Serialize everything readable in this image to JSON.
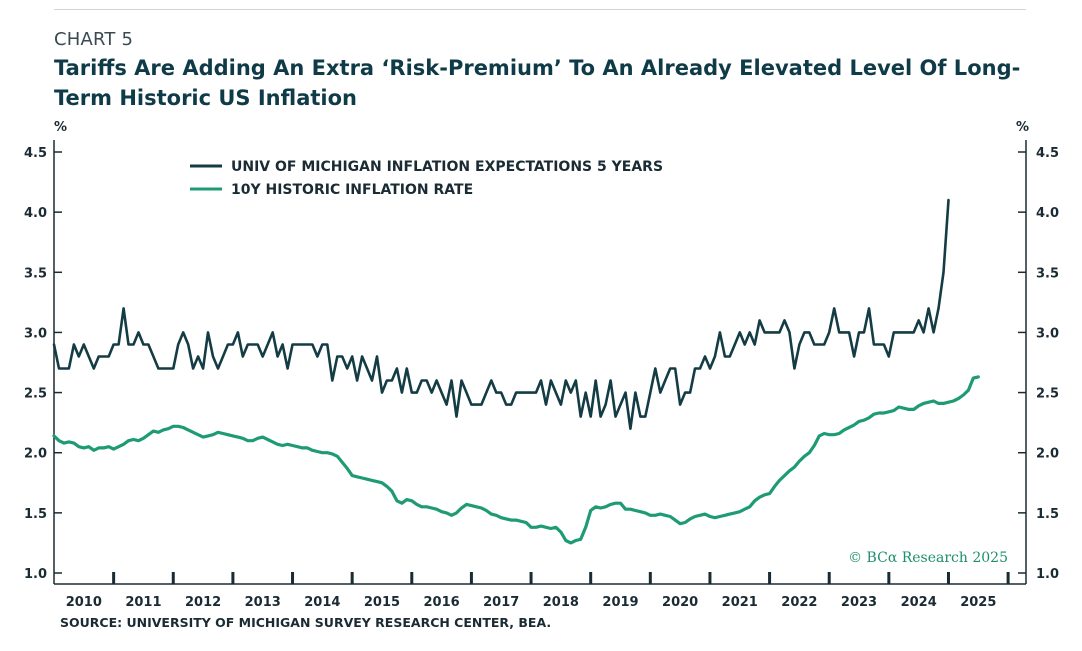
{
  "header": {
    "chart_number": "CHART 5",
    "title": "Tariffs Are Adding An Extra ‘Risk-Premium’ To An Already Elevated Level Of Long-Term Historic US Inflation"
  },
  "source": "SOURCE: UNIVERSITY OF MICHIGAN SURVEY RESEARCH CENTER, BEA.",
  "watermark": "© BCα Research 2025",
  "chart_data": {
    "type": "line",
    "title": "Tariffs Are Adding An Extra ‘Risk-Premium’ To An Already Elevated Level Of Long-Term Historic US Inflation",
    "ylabel_left": "%",
    "ylabel_right": "%",
    "ylim": [
      1.0,
      4.5
    ],
    "y_ticks": [
      "1.0",
      "1.5",
      "2.0",
      "2.5",
      "3.0",
      "3.5",
      "4.0",
      "4.5"
    ],
    "x_ticks": [
      "2010",
      "2011",
      "2012",
      "2013",
      "2014",
      "2015",
      "2016",
      "2017",
      "2018",
      "2019",
      "2020",
      "2021",
      "2022",
      "2023",
      "2024",
      "2025"
    ],
    "xlim": [
      2009.5,
      2025.8
    ],
    "grid": false,
    "legend_position": "top-left",
    "colors": {
      "expectations": "#143c44",
      "historic": "#1e9b74"
    },
    "series": [
      {
        "name": "UNIV OF MICHIGAN INFLATION EXPECTATIONS 5 YEARS",
        "start": 2009.5,
        "step": 0.0833333,
        "values": [
          2.9,
          2.7,
          2.7,
          2.7,
          2.9,
          2.8,
          2.9,
          2.8,
          2.7,
          2.8,
          2.8,
          2.8,
          2.9,
          2.9,
          3.2,
          2.9,
          2.9,
          3.0,
          2.9,
          2.9,
          2.8,
          2.7,
          2.7,
          2.7,
          2.7,
          2.9,
          3.0,
          2.9,
          2.7,
          2.8,
          2.7,
          3.0,
          2.8,
          2.7,
          2.8,
          2.9,
          2.9,
          3.0,
          2.8,
          2.9,
          2.9,
          2.9,
          2.8,
          2.9,
          3.0,
          2.8,
          2.9,
          2.7,
          2.9,
          2.9,
          2.9,
          2.9,
          2.9,
          2.8,
          2.9,
          2.9,
          2.6,
          2.8,
          2.8,
          2.7,
          2.8,
          2.6,
          2.8,
          2.7,
          2.6,
          2.8,
          2.5,
          2.6,
          2.6,
          2.7,
          2.5,
          2.7,
          2.5,
          2.5,
          2.6,
          2.6,
          2.5,
          2.6,
          2.5,
          2.4,
          2.6,
          2.3,
          2.6,
          2.5,
          2.4,
          2.4,
          2.4,
          2.5,
          2.6,
          2.5,
          2.5,
          2.4,
          2.4,
          2.5,
          2.5,
          2.5,
          2.5,
          2.5,
          2.6,
          2.4,
          2.6,
          2.5,
          2.4,
          2.6,
          2.5,
          2.6,
          2.3,
          2.5,
          2.3,
          2.6,
          2.3,
          2.4,
          2.6,
          2.3,
          2.4,
          2.5,
          2.2,
          2.5,
          2.3,
          2.3,
          2.5,
          2.7,
          2.5,
          2.6,
          2.7,
          2.7,
          2.4,
          2.5,
          2.5,
          2.7,
          2.7,
          2.8,
          2.7,
          2.8,
          3.0,
          2.8,
          2.8,
          2.9,
          3.0,
          2.9,
          3.0,
          2.9,
          3.1,
          3.0,
          3.0,
          3.0,
          3.0,
          3.1,
          3.0,
          2.7,
          2.9,
          3.0,
          3.0,
          2.9,
          2.9,
          2.9,
          3.0,
          3.2,
          3.0,
          3.0,
          3.0,
          2.8,
          3.0,
          3.0,
          3.2,
          2.9,
          2.9,
          2.9,
          2.8,
          3.0,
          3.0,
          3.0,
          3.0,
          3.0,
          3.1,
          3.0,
          3.2,
          3.0,
          3.2,
          3.5,
          4.1
        ]
      },
      {
        "name": "10Y HISTORIC INFLATION RATE",
        "start": 2009.5,
        "step": 0.0833333,
        "values": [
          2.14,
          2.1,
          2.08,
          2.09,
          2.08,
          2.05,
          2.04,
          2.05,
          2.02,
          2.04,
          2.04,
          2.05,
          2.03,
          2.05,
          2.07,
          2.1,
          2.11,
          2.1,
          2.12,
          2.15,
          2.18,
          2.17,
          2.19,
          2.2,
          2.22,
          2.22,
          2.21,
          2.19,
          2.17,
          2.15,
          2.13,
          2.14,
          2.15,
          2.17,
          2.16,
          2.15,
          2.14,
          2.13,
          2.12,
          2.1,
          2.1,
          2.12,
          2.13,
          2.11,
          2.09,
          2.07,
          2.06,
          2.07,
          2.06,
          2.05,
          2.04,
          2.04,
          2.02,
          2.01,
          2.0,
          2.0,
          1.99,
          1.97,
          1.92,
          1.87,
          1.81,
          1.8,
          1.79,
          1.78,
          1.77,
          1.76,
          1.75,
          1.72,
          1.68,
          1.6,
          1.58,
          1.61,
          1.6,
          1.57,
          1.55,
          1.55,
          1.54,
          1.53,
          1.51,
          1.5,
          1.48,
          1.5,
          1.54,
          1.57,
          1.56,
          1.55,
          1.54,
          1.52,
          1.49,
          1.48,
          1.46,
          1.45,
          1.44,
          1.44,
          1.43,
          1.42,
          1.38,
          1.38,
          1.39,
          1.38,
          1.37,
          1.38,
          1.34,
          1.27,
          1.25,
          1.27,
          1.28,
          1.38,
          1.52,
          1.55,
          1.54,
          1.55,
          1.57,
          1.58,
          1.58,
          1.53,
          1.53,
          1.52,
          1.51,
          1.5,
          1.48,
          1.48,
          1.49,
          1.48,
          1.47,
          1.44,
          1.41,
          1.42,
          1.45,
          1.47,
          1.48,
          1.49,
          1.47,
          1.46,
          1.47,
          1.48,
          1.49,
          1.5,
          1.51,
          1.53,
          1.55,
          1.6,
          1.63,
          1.65,
          1.66,
          1.72,
          1.77,
          1.81,
          1.85,
          1.88,
          1.93,
          1.97,
          2.0,
          2.06,
          2.14,
          2.16,
          2.15,
          2.15,
          2.16,
          2.19,
          2.21,
          2.23,
          2.26,
          2.27,
          2.29,
          2.32,
          2.33,
          2.33,
          2.34,
          2.35,
          2.38,
          2.37,
          2.36,
          2.36,
          2.39,
          2.41,
          2.42,
          2.43,
          2.41,
          2.41,
          2.42,
          2.43,
          2.45,
          2.48,
          2.52,
          2.62,
          2.63
        ]
      }
    ]
  }
}
